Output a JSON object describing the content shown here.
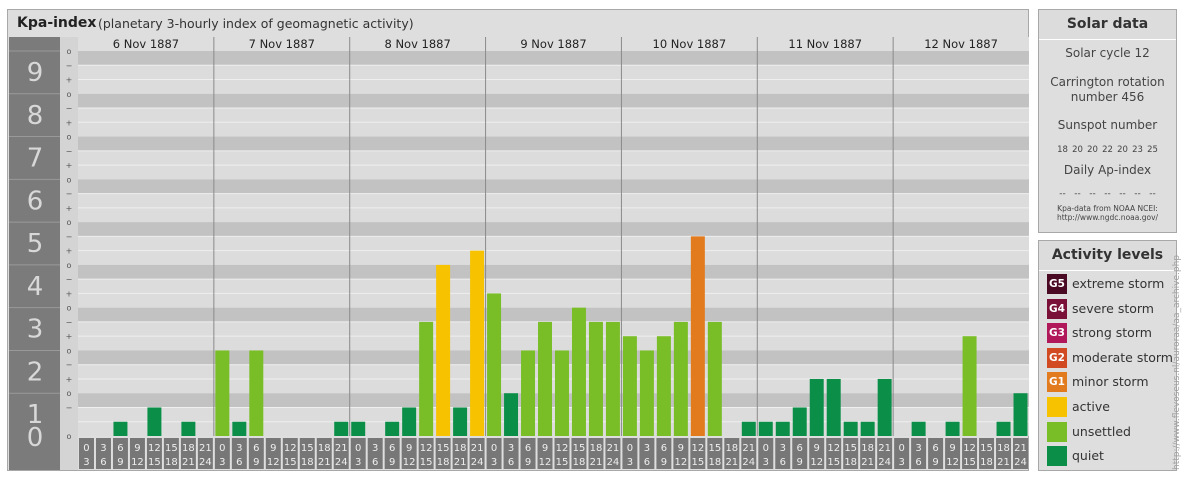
{
  "header": {
    "title": "Kpa-index",
    "subtitle": "(planetary 3-hourly index of geomagnetic activity)"
  },
  "chart_data": {
    "type": "bar",
    "title": "Kpa-index",
    "subtitle": "(planetary 3-hourly index of geomagnetic activity)",
    "ylim": [
      0,
      9
    ],
    "y_ticks": [
      "0",
      "1",
      "2",
      "3",
      "4",
      "5",
      "6",
      "7",
      "8",
      "9"
    ],
    "y_minor_ticks": [
      "o",
      "+",
      "−"
    ],
    "days": [
      "6 Nov 1887",
      "7 Nov 1887",
      "8 Nov 1887",
      "9 Nov 1887",
      "10 Nov 1887",
      "11 Nov 1887",
      "12 Nov 1887"
    ],
    "hour_ticks": [
      {
        "top": "0",
        "bottom": "3"
      },
      {
        "top": "3",
        "bottom": "6"
      },
      {
        "top": "6",
        "bottom": "9"
      },
      {
        "top": "9",
        "bottom": "12"
      },
      {
        "top": "12",
        "bottom": "15"
      },
      {
        "top": "15",
        "bottom": "18"
      },
      {
        "top": "18",
        "bottom": "21"
      },
      {
        "top": "21",
        "bottom": "24"
      }
    ],
    "values": [
      0,
      0,
      0.333,
      0,
      0.667,
      0,
      0.333,
      0,
      2,
      0.333,
      2,
      0,
      0,
      0,
      0,
      0.333,
      0.333,
      0,
      0.333,
      0.667,
      2.667,
      4,
      0.667,
      4.333,
      3.333,
      1,
      2,
      2.667,
      2,
      3,
      2.667,
      2.667,
      2.333,
      2,
      2.333,
      2.667,
      4.667,
      2.667,
      0,
      0.333,
      0.333,
      0.333,
      0.667,
      1.333,
      1.333,
      0.333,
      0.333,
      1.333,
      0,
      0.333,
      0,
      0.333,
      2.333,
      0,
      0.333,
      1
    ],
    "colors": {
      "quiet": "#0b8f48",
      "unsettled": "#79bd27",
      "active": "#f7c300",
      "minor_storm": "#e27a1e",
      "grid_dark": "#c2c2c2",
      "grid_light": "#dcdcdc",
      "axis_block": "#7b7b7b"
    }
  },
  "solar": {
    "header": "Solar data",
    "cycle": "Solar cycle 12",
    "carrington_line1": "Carrington rotation",
    "carrington_line2": "number 456",
    "sunspot_label": "Sunspot number",
    "sunspot_values": [
      "18",
      "20",
      "20",
      "22",
      "20",
      "23",
      "25"
    ],
    "ap_label": "Daily Ap-index",
    "ap_values": [
      "--",
      "--",
      "--",
      "--",
      "--",
      "--",
      "--"
    ],
    "source_line1": "Kpa-data from NOAA NCEI:",
    "source_line2": "http://www.ngdc.noaa.gov/"
  },
  "activity": {
    "header": "Activity levels",
    "levels": [
      {
        "code": "G5",
        "label": "extreme storm",
        "color": "#4a0a24"
      },
      {
        "code": "G4",
        "label": "severe storm",
        "color": "#7a1038"
      },
      {
        "code": "G3",
        "label": "strong storm",
        "color": "#b0185a"
      },
      {
        "code": "G2",
        "label": "moderate storm",
        "color": "#d24a22"
      },
      {
        "code": "G1",
        "label": "minor storm",
        "color": "#e27a1e"
      },
      {
        "code": "",
        "label": "active",
        "color": "#f7c300"
      },
      {
        "code": "",
        "label": "unsettled",
        "color": "#79bd27"
      },
      {
        "code": "",
        "label": "quiet",
        "color": "#0b8f48"
      }
    ]
  },
  "watermark": "http://www.flevoseus.nl/auroraa/aa_archive.php"
}
